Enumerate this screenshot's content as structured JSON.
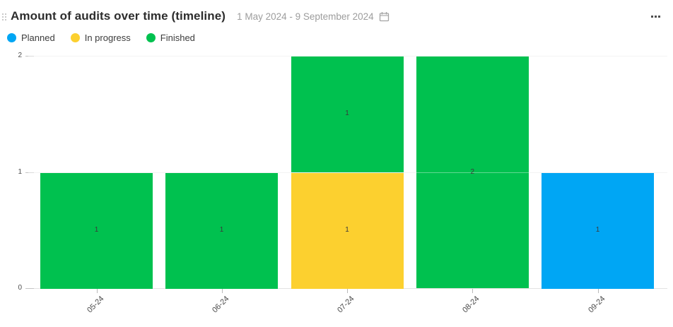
{
  "header": {
    "title": "Amount of audits over time (timeline)",
    "date_range": "1 May 2024 - 9 September 2024"
  },
  "legend": {
    "position": "top-left",
    "items": [
      {
        "label": "Planned",
        "color": "#00A6F4"
      },
      {
        "label": "In progress",
        "color": "#FCD02F"
      },
      {
        "label": "Finished",
        "color": "#00C14F"
      }
    ]
  },
  "chart_data": {
    "type": "bar",
    "stacked": true,
    "title": "Amount of audits over time (timeline)",
    "xlabel": "",
    "ylabel": "",
    "categories": [
      "05-24",
      "06-24",
      "07-24",
      "08-24",
      "09-24"
    ],
    "series": [
      {
        "name": "Planned",
        "color": "#00A6F4",
        "values": [
          0,
          0,
          0,
          0,
          1
        ]
      },
      {
        "name": "In progress",
        "color": "#FCD02F",
        "values": [
          0,
          0,
          1,
          0,
          0
        ]
      },
      {
        "name": "Finished",
        "color": "#00C14F",
        "values": [
          1,
          1,
          1,
          2,
          0
        ]
      }
    ],
    "stack_order_bottom_to_top": [
      "Planned",
      "In progress",
      "Finished"
    ],
    "ylim": [
      0,
      2
    ],
    "yticks": [
      0,
      1,
      2
    ],
    "grid": true,
    "bar_value_labels": true,
    "x_tick_rotation_deg": -45
  }
}
